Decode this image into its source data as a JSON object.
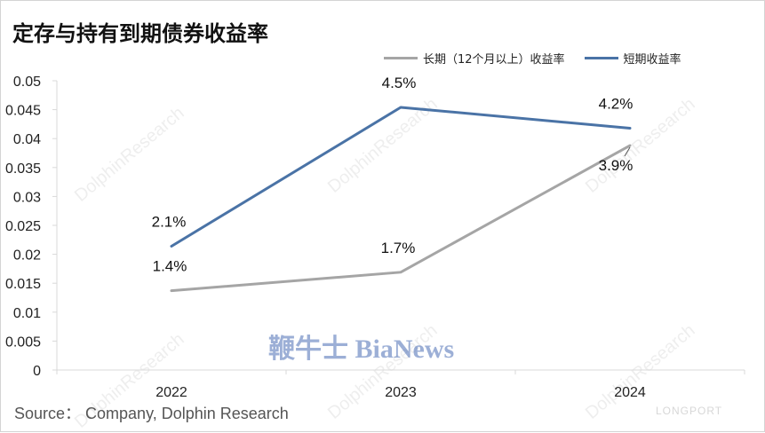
{
  "title": "定存与持有到期债券收益率",
  "source": "Source：  Company, Dolphin Research",
  "watermarks": {
    "text": "DolphinResearch",
    "brand": "鞭牛士 BiaNews",
    "corner": "LONGPORT"
  },
  "colors": {
    "long_term": "#a5a5a5",
    "short_term": "#4a73a6",
    "axis": "#d9d9d9"
  },
  "chart_data": {
    "type": "line",
    "title": "定存与持有到期债券收益率",
    "categories": [
      "2022",
      "2023",
      "2024"
    ],
    "y_ticks": [
      "0",
      "0.005",
      "0.01",
      "0.015",
      "0.02",
      "0.025",
      "0.03",
      "0.035",
      "0.04",
      "0.045",
      "0.05"
    ],
    "ylim": [
      0,
      0.05
    ],
    "grid": false,
    "legend_position": "top-right",
    "series": [
      {
        "name": "长期（12个月以上）收益率",
        "values": [
          0.0137,
          0.0169,
          0.0388
        ],
        "labels": [
          "1.4%",
          "1.7%",
          "3.9%"
        ],
        "color": "#a5a5a5"
      },
      {
        "name": "短期收益率",
        "values": [
          0.0214,
          0.0454,
          0.0418
        ],
        "labels": [
          "2.1%",
          "4.5%",
          "4.2%"
        ],
        "color": "#4a73a6"
      }
    ]
  }
}
